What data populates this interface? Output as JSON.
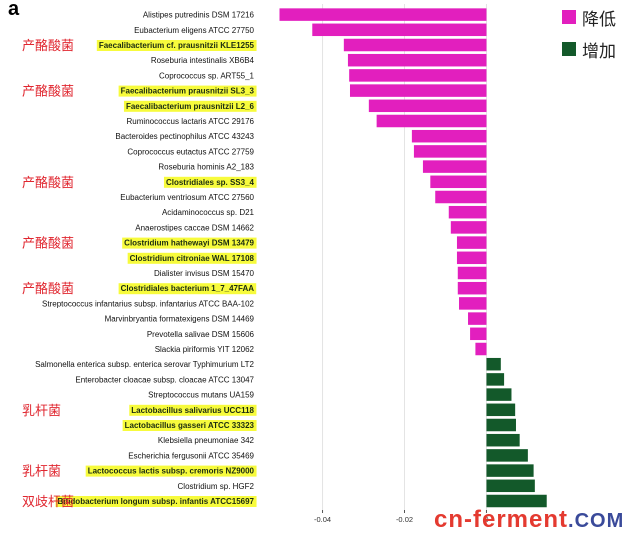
{
  "panel_label": "a",
  "chart_data": {
    "type": "bar",
    "orientation": "horizontal",
    "title": "",
    "xlabel": "",
    "ylabel": "",
    "xlim": [
      -0.0555,
      0.0155
    ],
    "xticks": [
      -0.04,
      -0.02,
      0
    ],
    "xtick_labels": [
      "-0.04",
      "-0.02",
      "0"
    ],
    "grid": true,
    "legend_position": "top-right",
    "categories": [
      "Alistipes putredinis DSM 17216",
      "Eubacterium eligens ATCC 27750",
      "Faecalibacterium cf. prausnitzii KLE1255",
      "Roseburia intestinalis XB6B4",
      "Coprococcus sp. ART55_1",
      "Faecalibacterium prausnitzii SL3_3",
      "Faecalibacterium prausnitzii L2_6",
      "Ruminococcus lactaris ATCC 29176",
      "Bacteroides pectinophilus ATCC 43243",
      "Coprococcus eutactus ATCC 27759",
      "Roseburia hominis A2_183",
      "Clostridiales sp. SS3_4",
      "Eubacterium ventriosum ATCC 27560",
      "Acidaminococcus sp. D21",
      "Anaerostipes caccae DSM 14662",
      "Clostridium hathewayi DSM 13479",
      "Clostridium citroniae WAL 17108",
      "Dialister invisus DSM 15470",
      "Clostridiales bacterium 1_7_47FAA",
      "Streptococcus infantarius subsp. infantarius ATCC BAA-102",
      "Marvinbryantia formatexigens DSM 14469",
      "Prevotella salivae DSM 15606",
      "Slackia piriformis YIT 12062",
      "Salmonella enterica subsp. enterica serovar Typhimurium LT2",
      "Enterobacter cloacae subsp. cloacae ATCC 13047",
      "Streptococcus mutans UA159",
      "Lactobacillus salivarius UCC118",
      "Lactobacillus gasseri ATCC 33323",
      "Klebsiella pneumoniae 342",
      "Escherichia fergusonii ATCC 35469",
      "Lactococcus lactis subsp. cremoris NZ9000",
      "Clostridium sp. HGF2",
      "Bifidobacterium longum subsp. infantis ATCC15697"
    ],
    "values": [
      -0.0505,
      -0.0425,
      -0.0348,
      -0.0338,
      -0.0335,
      -0.0333,
      -0.0287,
      -0.0268,
      -0.0182,
      -0.0177,
      -0.0155,
      -0.0137,
      -0.0125,
      -0.0092,
      -0.0087,
      -0.0072,
      -0.0072,
      -0.007,
      -0.007,
      -0.0067,
      -0.0045,
      -0.004,
      -0.0027,
      0.0035,
      0.0043,
      0.0061,
      0.007,
      0.0072,
      0.0081,
      0.0101,
      0.0115,
      0.0118,
      0.0147
    ],
    "highlighted": [
      "Faecalibacterium cf. prausnitzii KLE1255",
      "Faecalibacterium prausnitzii SL3_3",
      "Faecalibacterium prausnitzii L2_6",
      "Clostridiales sp. SS3_4",
      "Clostridium hathewayi DSM 13479",
      "Clostridium citroniae WAL 17108",
      "Clostridiales bacterium 1_7_47FAA",
      "Lactobacillus salivarius UCC118",
      "Lactobacillus gasseri ATCC 33323",
      "Lactococcus lactis subsp. cremoris NZ9000",
      "Bifidobacterium longum subsp. infantis ATCC15697"
    ],
    "series": [
      {
        "name": "降低",
        "color": "#e21fbe"
      },
      {
        "name": "增加",
        "color": "#13592a"
      }
    ],
    "annotations": [
      {
        "text": "产酪酸菌",
        "category": "Faecalibacterium cf. prausnitzii KLE1255"
      },
      {
        "text": "产酪酸菌",
        "category": "Faecalibacterium prausnitzii SL3_3"
      },
      {
        "text": "产酪酸菌",
        "category": "Clostridiales sp. SS3_4"
      },
      {
        "text": "产酪酸菌",
        "category": "Clostridium hathewayi DSM 13479"
      },
      {
        "text": "产酪酸菌",
        "category": "Clostridiales bacterium 1_7_47FAA"
      },
      {
        "text": "乳杆菌",
        "category": "Lactobacillus salivarius UCC118"
      },
      {
        "text": "乳杆菌",
        "category": "Lactococcus lactis subsp. cremoris NZ9000"
      },
      {
        "text": "双歧杆菌",
        "category": "Bifidobacterium longum subsp. infantis ATCC15697"
      }
    ],
    "highlight_color": "#f7fb3c",
    "annotation_color": "#e0262f"
  },
  "watermark": {
    "part1": "cn-ferment",
    "part2": ".COM"
  }
}
